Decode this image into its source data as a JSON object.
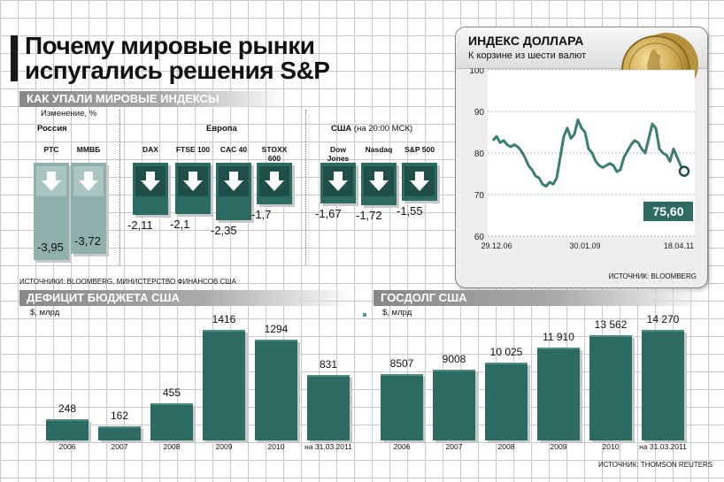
{
  "title": "Почему мировые рынки испугались решения S&P",
  "indices": {
    "header": "КАК УПАЛИ МИРОВЫЕ ИНДЕКСЫ",
    "unit": "Изменение, %",
    "groups": [
      {
        "name": "Россия",
        "note": ""
      },
      {
        "name": "Европа",
        "note": ""
      },
      {
        "name": "США",
        "note": "(на 20:00 МСК)"
      }
    ],
    "items": [
      {
        "label": "РТС",
        "value": -3.95,
        "text": "-3,95",
        "group": 0
      },
      {
        "label": "ММВБ",
        "value": -3.72,
        "text": "-3,72",
        "group": 0
      },
      {
        "label": "DAX",
        "value": -2.11,
        "text": "-2,11",
        "group": 1
      },
      {
        "label": "FTSE 100",
        "value": -2.1,
        "text": "-2,1",
        "group": 1
      },
      {
        "label": "CAC 40",
        "value": -2.35,
        "text": "-2,35",
        "group": 1
      },
      {
        "label": "STOXX 600",
        "value": -1.7,
        "text": "-1,7",
        "group": 1
      },
      {
        "label": "Dow Jones",
        "value": -1.67,
        "text": "-1,67",
        "group": 2
      },
      {
        "label": "Nasdaq",
        "value": -1.72,
        "text": "-1,72",
        "group": 2
      },
      {
        "label": "S&P 500",
        "value": -1.55,
        "text": "-1,55",
        "group": 2
      }
    ],
    "source": "ИСТОЧНИКИ: BLOOMBERG, МИНИСТЕРСТВО ФИНАНСОВ США"
  },
  "dollar": {
    "title": "ИНДЕКС ДОЛЛАРА",
    "subtitle": "К корзине из шести валют",
    "yticks": [
      "100",
      "90",
      "80",
      "70",
      "60"
    ],
    "ylim": [
      60,
      100
    ],
    "xticks": [
      "29.12.06",
      "30.01.09",
      "18.04.11"
    ],
    "last_text": "75,60",
    "source": "ИСТОЧНИК: BLOOMBERG",
    "chart_data": {
      "type": "line",
      "x": [
        0,
        1,
        2,
        3,
        4,
        5,
        6,
        7,
        8,
        9,
        10,
        11,
        12,
        13,
        14,
        15,
        16,
        17,
        18,
        19,
        20,
        21,
        22,
        23,
        24,
        25,
        26,
        27,
        28,
        29,
        30,
        31,
        32,
        33,
        34,
        35,
        36,
        37,
        38,
        39,
        40,
        41,
        42,
        43,
        44,
        45,
        46,
        47,
        48,
        49,
        50,
        51,
        52,
        53,
        54
      ],
      "values": [
        83.0,
        84.0,
        82.5,
        83.0,
        82.0,
        81.5,
        82.0,
        81.5,
        80.5,
        79.0,
        77.0,
        76.0,
        74.5,
        74.0,
        72.5,
        72.0,
        73.0,
        72.5,
        74.0,
        79.0,
        84.0,
        86.0,
        83.5,
        84.5,
        88.0,
        86.0,
        85.0,
        81.0,
        80.0,
        78.0,
        77.0,
        76.5,
        77.0,
        77.5,
        77.0,
        75.5,
        76.0,
        79.0,
        80.5,
        82.0,
        83.0,
        82.5,
        81.0,
        80.0,
        83.5,
        87.0,
        86.0,
        81.0,
        80.0,
        79.5,
        78.0,
        81.0,
        79.0,
        77.0,
        75.6
      ]
    }
  },
  "budget": {
    "header": "ДЕФИЦИТ БЮДЖЕТА США",
    "unit": "$, млрд",
    "chart_data": {
      "type": "bar",
      "categories": [
        "2006",
        "2007",
        "2008",
        "2009",
        "2010",
        "на 31.03.2011"
      ],
      "values": [
        248,
        162,
        455,
        1416,
        1294,
        831
      ],
      "labels": [
        "248",
        "162",
        "455",
        "1416",
        "1294",
        "831"
      ]
    }
  },
  "debt": {
    "header": "ГОСДОЛГ США",
    "unit": "$, млрд",
    "chart_data": {
      "type": "bar",
      "categories": [
        "2006",
        "2007",
        "2008",
        "2009",
        "2010",
        "на 31.03.2011"
      ],
      "values": [
        8507,
        9008,
        10025,
        11910,
        13562,
        14270
      ],
      "labels": [
        "8507",
        "9008",
        "10 025",
        "11 910",
        "13 562",
        "14 270"
      ]
    }
  },
  "bottom_source": "ИСТОЧНИК: THOMSON REUTERS",
  "colors": {
    "russia": "#8fb0ad",
    "teal": "#2d6b62",
    "dark": "#1f4f48",
    "line": "#3a7d72"
  }
}
